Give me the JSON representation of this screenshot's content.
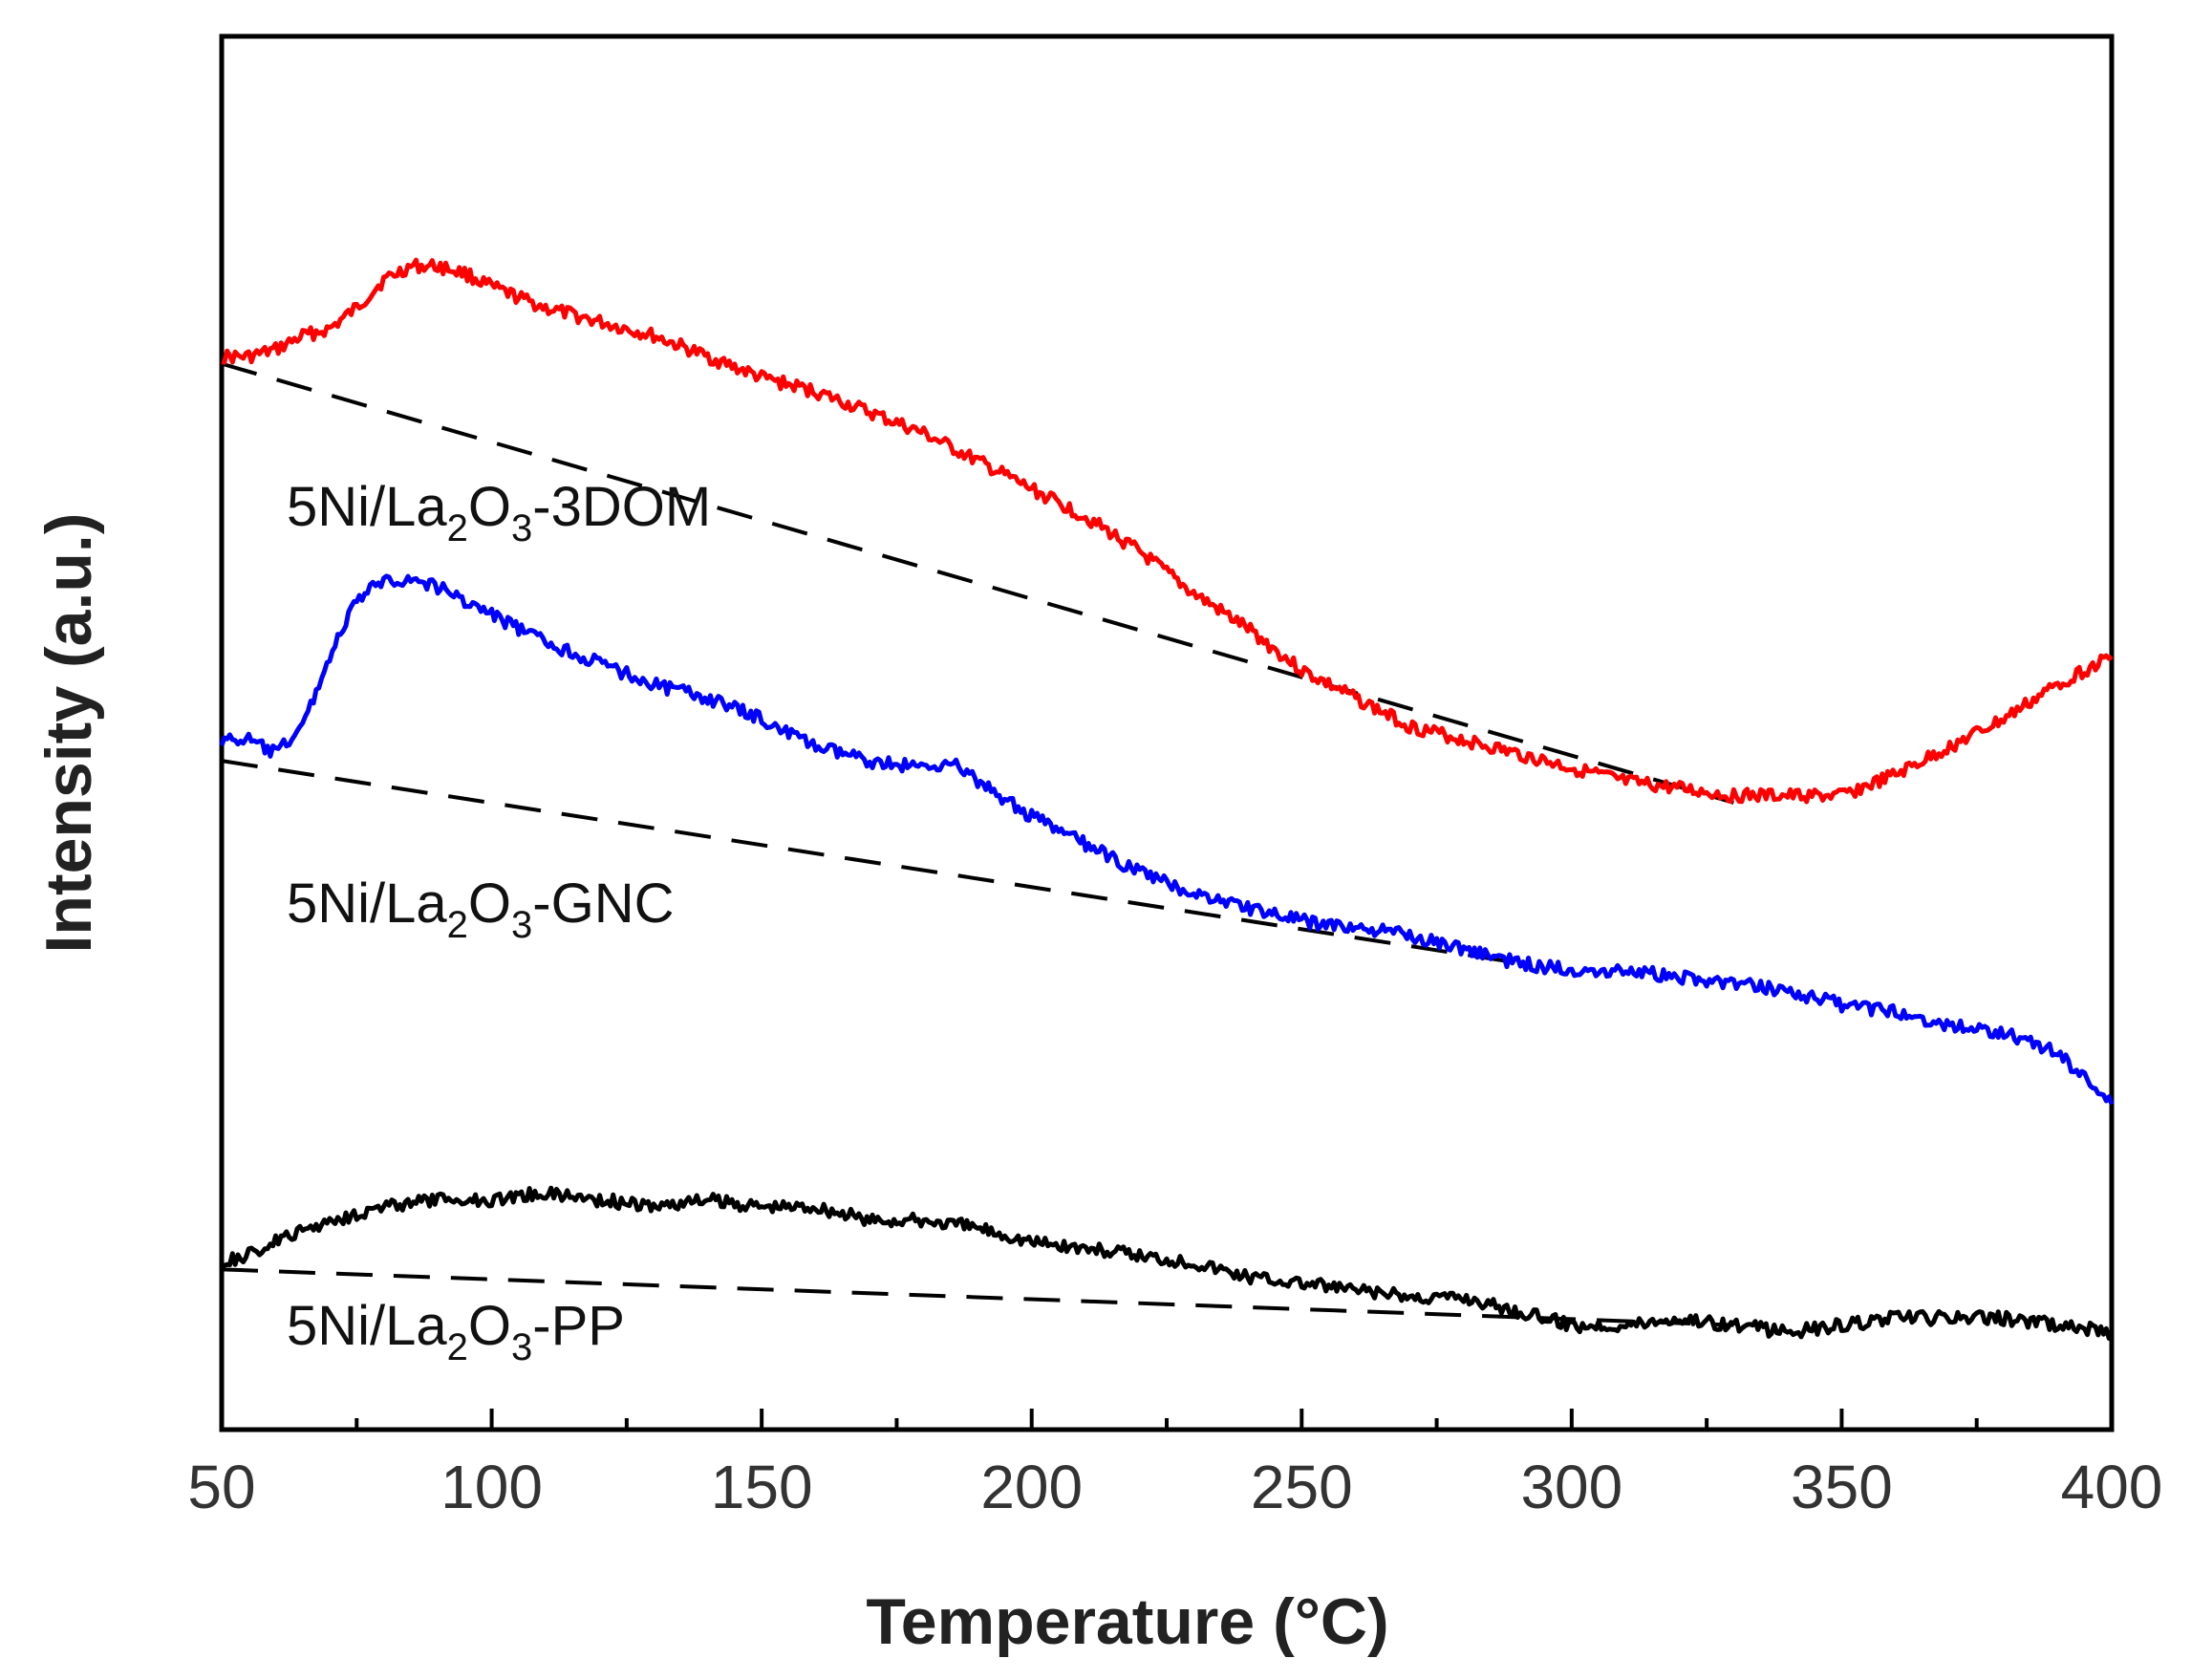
{
  "chart_data": {
    "type": "line",
    "title": "",
    "xlabel": "Temperature (°C)",
    "ylabel": "Intensity (a.u.)",
    "xlim": [
      50,
      400
    ],
    "ylim": [
      0,
      10
    ],
    "x_ticks": [
      50,
      100,
      150,
      200,
      250,
      300,
      350,
      400
    ],
    "x_tick_labels": [
      "50",
      "100",
      "150",
      "200",
      "250",
      "300",
      "350",
      "400"
    ],
    "y_tick_labels_shown": false,
    "grid": false,
    "legend": "none (direct labels on left)",
    "series": [
      {
        "name": "5Ni/La2O3-3DOM",
        "label_main": "5Ni/La",
        "label_sub1": "2",
        "label_mid": "O",
        "label_sub2": "3",
        "label_tail": "-3DOM",
        "color": "#ff0000",
        "x": [
          50,
          55,
          60,
          65,
          70,
          75,
          80,
          85,
          90,
          95,
          100,
          110,
          120,
          130,
          140,
          150,
          160,
          170,
          180,
          190,
          200,
          210,
          220,
          230,
          240,
          250,
          260,
          270,
          280,
          290,
          300,
          310,
          320,
          330,
          340,
          350,
          360,
          370,
          380,
          390,
          400
        ],
        "y": [
          7.7,
          7.7,
          7.75,
          7.85,
          7.9,
          8.05,
          8.25,
          8.35,
          8.35,
          8.3,
          8.2,
          8.05,
          7.95,
          7.85,
          7.7,
          7.55,
          7.45,
          7.3,
          7.15,
          6.95,
          6.75,
          6.55,
          6.3,
          6.0,
          5.75,
          5.45,
          5.25,
          5.05,
          4.95,
          4.85,
          4.75,
          4.65,
          4.6,
          4.55,
          4.55,
          4.55,
          4.7,
          4.9,
          5.1,
          5.35,
          5.55
        ]
      },
      {
        "name": "5Ni/La2O3-GNC",
        "label_main": "5Ni/La",
        "label_sub1": "2",
        "label_mid": "O",
        "label_sub2": "3",
        "label_tail": "-GNC",
        "color": "#0000ff",
        "x": [
          50,
          55,
          60,
          65,
          70,
          75,
          80,
          85,
          90,
          95,
          100,
          110,
          120,
          130,
          140,
          150,
          160,
          170,
          180,
          185,
          190,
          200,
          210,
          220,
          230,
          240,
          250,
          260,
          270,
          280,
          290,
          300,
          310,
          320,
          330,
          340,
          350,
          360,
          370,
          380,
          390,
          400
        ],
        "y": [
          4.95,
          4.95,
          4.85,
          5.05,
          5.55,
          5.95,
          6.1,
          6.1,
          6.05,
          5.95,
          5.85,
          5.65,
          5.5,
          5.35,
          5.25,
          5.1,
          4.9,
          4.8,
          4.75,
          4.8,
          4.65,
          4.4,
          4.2,
          4.0,
          3.85,
          3.75,
          3.65,
          3.6,
          3.55,
          3.45,
          3.35,
          3.3,
          3.3,
          3.25,
          3.2,
          3.15,
          3.05,
          3.0,
          2.9,
          2.85,
          2.7,
          2.35
        ]
      },
      {
        "name": "5Ni/La2O3-PP",
        "label_main": "5Ni/La",
        "label_sub1": "2",
        "label_mid": "O",
        "label_sub2": "3",
        "label_tail": "-PP",
        "color": "#000000",
        "x": [
          50,
          55,
          60,
          70,
          80,
          90,
          100,
          110,
          120,
          130,
          140,
          150,
          160,
          170,
          180,
          190,
          200,
          210,
          220,
          230,
          240,
          250,
          260,
          270,
          280,
          290,
          300,
          310,
          320,
          330,
          340,
          350,
          360,
          370,
          380,
          390,
          400
        ],
        "y": [
          1.2,
          1.25,
          1.35,
          1.5,
          1.6,
          1.65,
          1.65,
          1.7,
          1.65,
          1.6,
          1.65,
          1.6,
          1.6,
          1.5,
          1.5,
          1.45,
          1.35,
          1.3,
          1.25,
          1.2,
          1.1,
          1.05,
          1.0,
          0.95,
          0.95,
          0.85,
          0.75,
          0.75,
          0.8,
          0.75,
          0.7,
          0.75,
          0.8,
          0.8,
          0.8,
          0.75,
          0.7
        ]
      }
    ],
    "baselines": [
      {
        "series": "5Ni/La2O3-3DOM",
        "style": "dashed",
        "color": "#000000",
        "x": [
          50,
          330
        ],
        "y": [
          7.65,
          4.5
        ]
      },
      {
        "series": "5Ni/La2O3-GNC",
        "style": "dashed",
        "color": "#000000",
        "x": [
          50,
          290
        ],
        "y": [
          4.8,
          3.35
        ]
      },
      {
        "series": "5Ni/La2O3-PP",
        "style": "dashed",
        "color": "#000000",
        "x": [
          50,
          330
        ],
        "y": [
          1.15,
          0.75
        ]
      }
    ]
  }
}
